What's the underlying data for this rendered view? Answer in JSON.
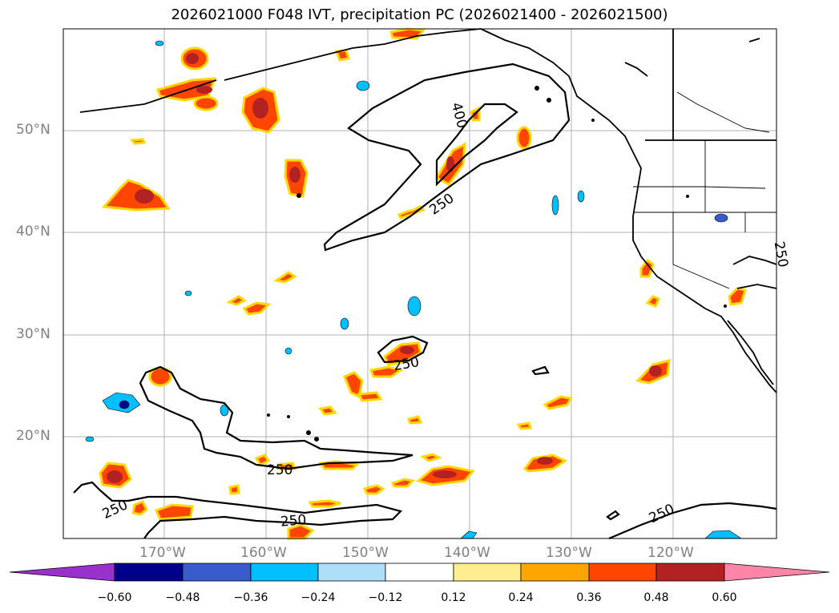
{
  "title": "2026021000 F048 IVT, precipitation PC (2026021400 - 2026021500)",
  "lat_labels": [
    "50°N",
    "40°N",
    "30°N",
    "20°N"
  ],
  "lon_labels": [
    "170°W",
    "160°W",
    "150°W",
    "140°W",
    "130°W",
    "120°W"
  ],
  "contour_labels": [
    "400",
    "250",
    "250",
    "250",
    "250",
    "250",
    "250",
    "250"
  ],
  "colorbar": {
    "tick_labels": [
      "−0.60",
      "−0.48",
      "−0.36",
      "−0.24",
      "−0.12",
      "0.12",
      "0.24",
      "0.36",
      "0.48",
      "0.60"
    ],
    "colors": [
      "#9932CC",
      "#00008B",
      "#3A5BCC",
      "#00BFFF",
      "#ADE0F8",
      "#FFFFFF",
      "#FFEE90",
      "#FFA500",
      "#FF4500",
      "#B22222",
      "#FF85A8"
    ]
  }
}
